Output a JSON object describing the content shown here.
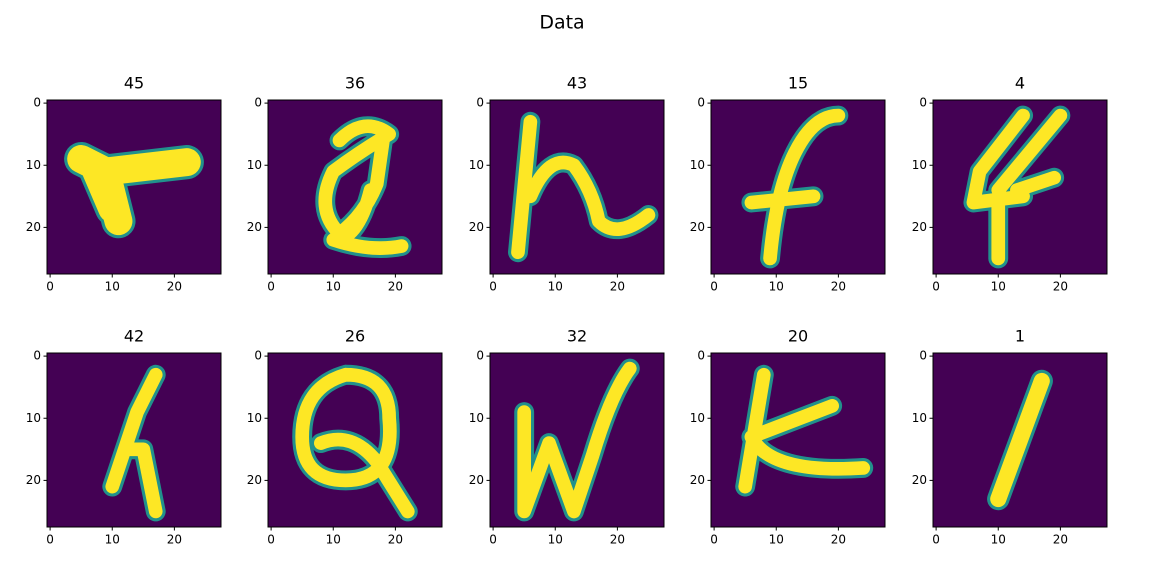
{
  "title": "Data",
  "chart_data": [
    {
      "type": "image",
      "title": "45",
      "xlim": [
        -0.5,
        27.5
      ],
      "ylim": [
        27.5,
        -0.5
      ],
      "xticks": [
        0,
        10,
        20
      ],
      "yticks": [
        0,
        10,
        20
      ]
    },
    {
      "type": "image",
      "title": "36",
      "xlim": [
        -0.5,
        27.5
      ],
      "ylim": [
        27.5,
        -0.5
      ],
      "xticks": [
        0,
        10,
        20
      ],
      "yticks": [
        0,
        10,
        20
      ]
    },
    {
      "type": "image",
      "title": "43",
      "xlim": [
        -0.5,
        27.5
      ],
      "ylim": [
        27.5,
        -0.5
      ],
      "xticks": [
        0,
        10,
        20
      ],
      "yticks": [
        0,
        10,
        20
      ]
    },
    {
      "type": "image",
      "title": "15",
      "xlim": [
        -0.5,
        27.5
      ],
      "ylim": [
        27.5,
        -0.5
      ],
      "xticks": [
        0,
        10,
        20
      ],
      "yticks": [
        0,
        10,
        20
      ]
    },
    {
      "type": "image",
      "title": "4",
      "xlim": [
        -0.5,
        27.5
      ],
      "ylim": [
        27.5,
        -0.5
      ],
      "xticks": [
        0,
        10,
        20
      ],
      "yticks": [
        0,
        10,
        20
      ]
    },
    {
      "type": "image",
      "title": "42",
      "xlim": [
        -0.5,
        27.5
      ],
      "ylim": [
        27.5,
        -0.5
      ],
      "xticks": [
        0,
        10,
        20
      ],
      "yticks": [
        0,
        10,
        20
      ]
    },
    {
      "type": "image",
      "title": "26",
      "xlim": [
        -0.5,
        27.5
      ],
      "ylim": [
        27.5,
        -0.5
      ],
      "xticks": [
        0,
        10,
        20
      ],
      "yticks": [
        0,
        10,
        20
      ]
    },
    {
      "type": "image",
      "title": "32",
      "xlim": [
        -0.5,
        27.5
      ],
      "ylim": [
        27.5,
        -0.5
      ],
      "xticks": [
        0,
        10,
        20
      ],
      "yticks": [
        0,
        10,
        20
      ]
    },
    {
      "type": "image",
      "title": "20",
      "xlim": [
        -0.5,
        27.5
      ],
      "ylim": [
        27.5,
        -0.5
      ],
      "xticks": [
        0,
        10,
        20
      ],
      "yticks": [
        0,
        10,
        20
      ]
    },
    {
      "type": "image",
      "title": "1",
      "xlim": [
        -0.5,
        27.5
      ],
      "ylim": [
        27.5,
        -0.5
      ],
      "xticks": [
        0,
        10,
        20
      ],
      "yticks": [
        0,
        10,
        20
      ]
    }
  ]
}
